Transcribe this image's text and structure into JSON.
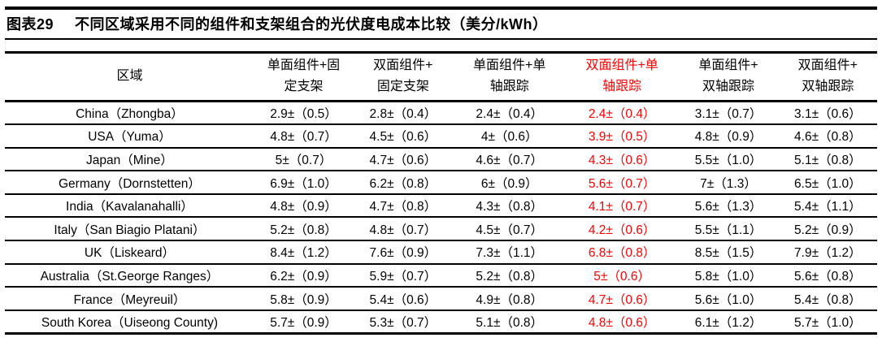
{
  "title": {
    "label": "图表29",
    "text": "不同区域采用不同的组件和支架组合的光伏度电成本比较（美分/kWh）"
  },
  "colors": {
    "text": "#000000",
    "highlight": "#ff0000",
    "background": "#ffffff",
    "rule": "#000000"
  },
  "table": {
    "region_header": "区域",
    "columns": [
      {
        "line1": "单面组件+固",
        "line2": "定支架",
        "highlight": false
      },
      {
        "line1": "双面组件+",
        "line2": "固定支架",
        "highlight": false
      },
      {
        "line1": "单面组件+单",
        "line2": "轴跟踪",
        "highlight": false
      },
      {
        "line1": "双面组件+单",
        "line2": "轴跟踪",
        "highlight": true
      },
      {
        "line1": "单面组件+",
        "line2": "双轴跟踪",
        "highlight": false
      },
      {
        "line1": "双面组件+",
        "line2": "双轴跟踪",
        "highlight": false
      }
    ],
    "rows": [
      {
        "region": "China（Zhongba）",
        "values": [
          "2.9±（0.5）",
          "2.8±（0.4）",
          "2.4±（0.4）",
          "2.4±（0.4）",
          "3.1±（0.7）",
          "3.1±（0.6）"
        ]
      },
      {
        "region": "USA（Yuma）",
        "values": [
          "4.8±（0.7）",
          "4.5±（0.6）",
          "4±（0.6）",
          "3.9±（0.5）",
          "4.8±（0.9）",
          "4.6±（0.8）"
        ]
      },
      {
        "region": "Japan（Mine）",
        "values": [
          "5±（0.7）",
          "4.7±（0.6）",
          "4.6±（0.7）",
          "4.3±（0.6）",
          "5.5±（1.0）",
          "5.1±（0.8）"
        ]
      },
      {
        "region": "Germany（Dornstetten）",
        "values": [
          "6.9±（1.0）",
          "6.2±（0.8）",
          "6±（0.9）",
          "5.6±（0.7）",
          "7±（1.3）",
          "6.5±（1.0）"
        ]
      },
      {
        "region": "India（Kavalanahalli）",
        "values": [
          "4.8±（0.9）",
          "4.7±（0.8）",
          "4.3±（0.8）",
          "4.1±（0.7）",
          "5.6±（1.3）",
          "5.4±（1.1）"
        ]
      },
      {
        "region": "Italy（San Biagio Platani）",
        "values": [
          "5.2±（0.8）",
          "4.8±（0.7）",
          "4.5±（0.7）",
          "4.2±（0.6）",
          "5.5±（1.1）",
          "5.2±（0.9）"
        ]
      },
      {
        "region": "UK（Liskeard）",
        "values": [
          "8.4±（1.2）",
          "7.6±（0.9）",
          "7.3±（1.1）",
          "6.8±（0.8）",
          "8.5±（1.5）",
          "7.9±（1.2）"
        ]
      },
      {
        "region": "Australia（St.George Ranges）",
        "values": [
          "6.2±（0.9）",
          "5.9±（0.7）",
          "5.2±（0.8）",
          "5±（0.6）",
          "5.8±（1.0）",
          "5.6±（0.8）"
        ]
      },
      {
        "region": "France（Meyreuil）",
        "values": [
          "5.8±（0.9）",
          "5.4±（0.6）",
          "4.9±（0.8）",
          "4.7±（0.6）",
          "5.6±（1.0）",
          "5.4±（0.8）"
        ]
      },
      {
        "region": "South Korea（Uiseong County)",
        "values": [
          "5.7±（0.9）",
          "5.3±（0.7）",
          "5.1±（0.8）",
          "4.8±（0.6）",
          "6.1±（1.2）",
          "5.7±（1.0）"
        ]
      }
    ]
  }
}
